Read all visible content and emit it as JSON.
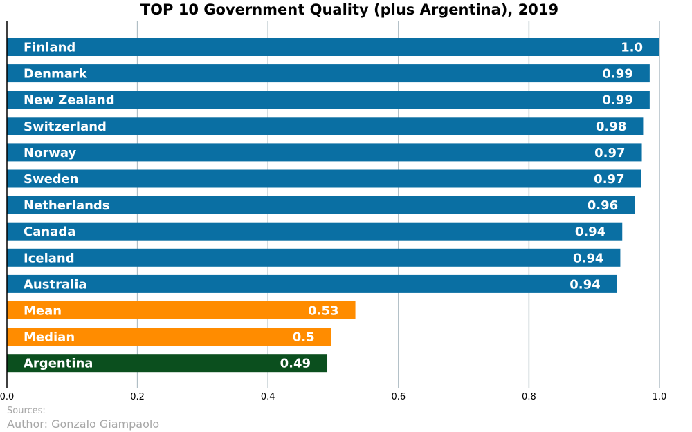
{
  "chart_data": {
    "type": "bar",
    "orientation": "horizontal",
    "title": "TOP 10 Government Quality (plus Argentina), 2019",
    "xlabel": "",
    "ylabel": "",
    "xlim": [
      0,
      1.0
    ],
    "xticks": [
      "0.0",
      "0.2",
      "0.4",
      "0.6",
      "0.8",
      "1.0"
    ],
    "grid": "vertical",
    "categories": [
      "Finland",
      "Denmark",
      "New Zealand",
      "Switzerland",
      "Norway",
      "Sweden",
      "Netherlands",
      "Canada",
      "Iceland",
      "Australia",
      "Mean",
      "Median",
      "Argentina"
    ],
    "values": [
      1.0,
      0.985,
      0.985,
      0.975,
      0.973,
      0.972,
      0.962,
      0.943,
      0.94,
      0.935,
      0.534,
      0.497,
      0.491
    ],
    "value_labels": [
      "1.0",
      "0.99",
      "0.99",
      "0.98",
      "0.97",
      "0.97",
      "0.96",
      "0.94",
      "0.94",
      "0.94",
      "0.53",
      "0.5",
      "0.49"
    ],
    "bar_colors": [
      "#0a6fa3",
      "#0a6fa3",
      "#0a6fa3",
      "#0a6fa3",
      "#0a6fa3",
      "#0a6fa3",
      "#0a6fa3",
      "#0a6fa3",
      "#0a6fa3",
      "#0a6fa3",
      "#ff8c00",
      "#ff8c00",
      "#0b4f1e"
    ]
  },
  "colors": {
    "top10": "#0a6fa3",
    "average": "#ff8c00",
    "argentina": "#0b4f1e",
    "grid": "#b0bec5",
    "label_text": "#ffffff"
  },
  "footer": {
    "sources": "Sources:",
    "author": "Author: Gonzalo Giampaolo"
  }
}
